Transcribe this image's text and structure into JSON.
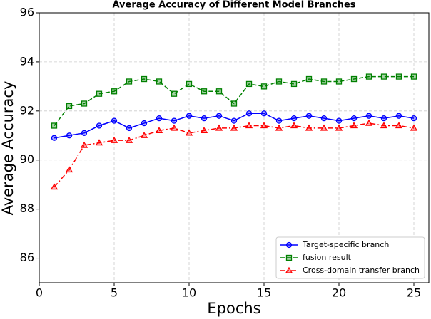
{
  "chart_data": {
    "type": "line",
    "title": "Average Accuracy of Different Model Branches",
    "x_label": "Epochs",
    "y_label": "Average Accuracy",
    "x": [
      1,
      2,
      3,
      4,
      5,
      6,
      7,
      8,
      9,
      10,
      11,
      12,
      13,
      14,
      15,
      16,
      17,
      18,
      19,
      20,
      21,
      22,
      23,
      24,
      25
    ],
    "series": [
      {
        "name": "Target-specific branch",
        "color": "#0000ff",
        "marker": "circle",
        "dash": "solid",
        "values": [
          90.9,
          91.0,
          91.1,
          91.4,
          91.6,
          91.3,
          91.5,
          91.7,
          91.6,
          91.8,
          91.7,
          91.8,
          91.6,
          91.9,
          91.9,
          91.6,
          91.7,
          91.8,
          91.7,
          91.6,
          91.7,
          91.8,
          91.7,
          91.8,
          91.7
        ]
      },
      {
        "name": "fusion result",
        "color": "#008000",
        "marker": "square",
        "dash": "dashed",
        "values": [
          91.4,
          92.2,
          92.3,
          92.7,
          92.8,
          93.2,
          93.3,
          93.2,
          92.7,
          93.1,
          92.8,
          92.8,
          92.3,
          93.1,
          93.0,
          93.2,
          93.1,
          93.3,
          93.2,
          93.2,
          93.3,
          93.4,
          93.4,
          93.4,
          93.4
        ]
      },
      {
        "name": "Cross-domain transfer branch",
        "color": "#ff0000",
        "marker": "triangle",
        "dash": "dashdot",
        "values": [
          88.9,
          89.6,
          90.6,
          90.7,
          90.8,
          90.8,
          91.0,
          91.2,
          91.3,
          91.1,
          91.2,
          91.3,
          91.3,
          91.4,
          91.4,
          91.3,
          91.4,
          91.3,
          91.3,
          91.3,
          91.4,
          91.5,
          91.4,
          91.4,
          91.3
        ]
      }
    ],
    "xlim": [
      0,
      26
    ],
    "xticks": [
      0,
      5,
      10,
      15,
      20,
      25
    ],
    "ylim": [
      85,
      96
    ],
    "yticks": [
      86,
      88,
      90,
      92,
      94,
      96
    ],
    "grid": true,
    "legend": "lower right"
  }
}
